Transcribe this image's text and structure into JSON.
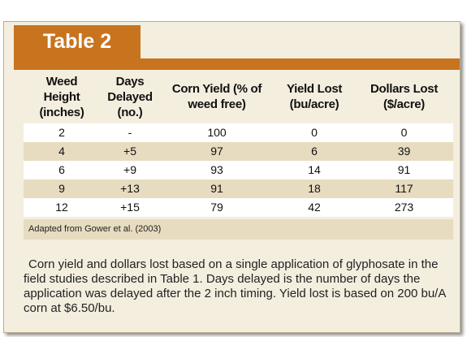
{
  "table": {
    "title": "Table 2",
    "headers": [
      "Weed Height (inches)",
      "Days Delayed (no.)",
      "Corn Yield (% of weed free)",
      "Yield Lost (bu/acre)",
      "Dollars Lost ($/acre)"
    ],
    "rows": [
      [
        "2",
        "-",
        "100",
        "0",
        "0"
      ],
      [
        "4",
        "+5",
        "97",
        "6",
        "39"
      ],
      [
        "6",
        "+9",
        "93",
        "14",
        "91"
      ],
      [
        "9",
        "+13",
        "91",
        "18",
        "117"
      ],
      [
        "12",
        "+15",
        "79",
        "42",
        "273"
      ]
    ],
    "source": "Adapted from Gower et al. (2003)",
    "caption": "Corn yield and dollars lost based on a single application of glyphosate in the field studies described in Table 1.  Days delayed is the number of days the application was delayed after the 2 inch timing.  Yield lost is based on 200 bu/A corn at $6.50/bu."
  },
  "colors": {
    "accent": "#c8741f",
    "panel": "#f4eedf",
    "stripe": "#e7dcc0"
  }
}
